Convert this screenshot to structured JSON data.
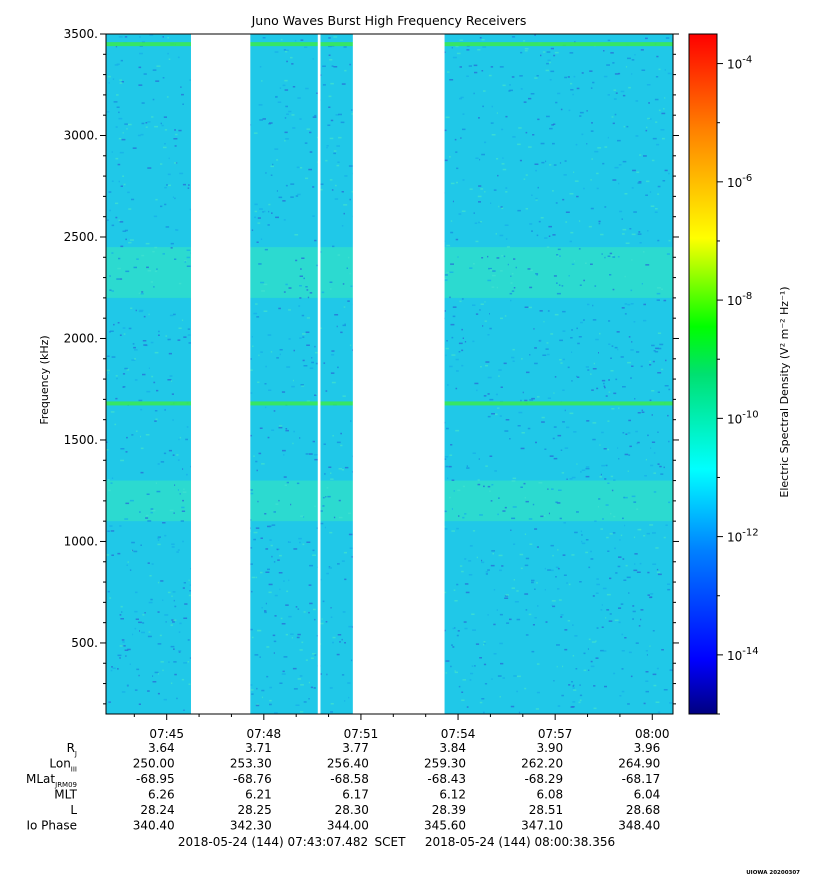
{
  "chart_data": {
    "type": "heatmap",
    "title": "Juno Waves Burst High Frequency Receivers",
    "ylabel": "Frequency (kHz)",
    "colorbar_label": "Electric Spectral Density (V² m⁻² Hz⁻¹)",
    "ylim": [
      150,
      3500
    ],
    "xlim_minutes": [
      43.125,
      60.64
    ],
    "y_ticks": [
      500,
      1000,
      1500,
      2000,
      2500,
      3000,
      3500
    ],
    "y_tick_labels": [
      "500.",
      "1000.",
      "1500.",
      "2000.",
      "2500.",
      "3000.",
      "3500."
    ],
    "x_ticks": [
      "07:45",
      "07:48",
      "07:51",
      "07:54",
      "07:57",
      "08:00"
    ],
    "colorbar": {
      "scale": "log",
      "range_exponents": [
        -15,
        -3.5
      ],
      "tick_exponents": [
        -4,
        -6,
        -8,
        -10,
        -12,
        -14
      ],
      "tick_labels": [
        "10-4",
        "10-6",
        "10-8",
        "10-10",
        "10-12",
        "10-14"
      ],
      "colors": [
        "#000080",
        "#0000ff",
        "#0080ff",
        "#00ffff",
        "#00ff00",
        "#ffff00",
        "#ff8000",
        "#ff0000"
      ]
    },
    "data_gaps": [
      {
        "from": "07:45:45",
        "to": "07:47:35"
      },
      {
        "from": "07:49:40",
        "to": "07:49:45"
      },
      {
        "from": "07:50:45",
        "to": "07:53:35"
      }
    ],
    "emission_lines_khz": [
      3450,
      1680
    ],
    "enhanced_bands_khz": [
      [
        2200,
        2450
      ],
      [
        1100,
        1300
      ]
    ],
    "ephemeris": {
      "labels": [
        "RJ",
        "LonIII",
        "MLatJRM09",
        "MLT",
        "L",
        "Io Phase"
      ],
      "rows": [
        [
          "3.64",
          "3.71",
          "3.77",
          "3.84",
          "3.90",
          "3.96"
        ],
        [
          "250.00",
          "253.30",
          "256.40",
          "259.30",
          "262.20",
          "264.90"
        ],
        [
          "-68.95",
          "-68.76",
          "-68.58",
          "-68.43",
          "-68.29",
          "-68.17"
        ],
        [
          "6.26",
          "6.21",
          "6.17",
          "6.12",
          "6.08",
          "6.04"
        ],
        [
          "28.24",
          "28.25",
          "28.30",
          "28.39",
          "28.51",
          "28.68"
        ],
        [
          "340.40",
          "342.30",
          "344.00",
          "345.60",
          "347.10",
          "348.40"
        ]
      ]
    },
    "time_range_text": {
      "start": "2018-05-24 (144) 07:43:07.482",
      "scet": "SCET",
      "end": "2018-05-24 (144) 08:00:38.356"
    },
    "credit": "UIOWA 20200307"
  }
}
